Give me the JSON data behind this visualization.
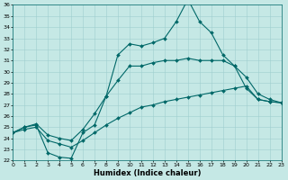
{
  "xlabel": "Humidex (Indice chaleur)",
  "x_min": 0,
  "x_max": 23,
  "y_min": 22,
  "y_max": 36,
  "background_color": "#c5e8e5",
  "grid_color": "#9ecece",
  "line_color": "#006868",
  "line1_x": [
    0,
    1,
    2,
    3,
    4,
    5,
    6,
    7,
    8,
    9,
    10,
    11,
    12,
    13,
    14,
    15,
    16,
    17,
    18,
    19,
    20,
    21,
    22,
    23
  ],
  "line1_y": [
    24.5,
    25.0,
    25.2,
    22.7,
    22.3,
    22.2,
    24.5,
    25.2,
    27.8,
    31.5,
    32.5,
    32.3,
    32.6,
    33.0,
    34.5,
    36.5,
    34.5,
    33.5,
    31.5,
    30.5,
    28.5,
    27.5,
    27.3,
    27.2
  ],
  "line2_x": [
    0,
    1,
    2,
    3,
    4,
    5,
    6,
    7,
    8,
    9,
    10,
    11,
    12,
    13,
    14,
    15,
    16,
    17,
    18,
    19,
    20,
    21,
    22,
    23
  ],
  "line2_y": [
    24.5,
    25.0,
    25.3,
    24.3,
    24.0,
    23.8,
    24.8,
    26.2,
    27.8,
    29.2,
    30.5,
    30.5,
    30.8,
    31.0,
    31.0,
    31.2,
    31.0,
    31.0,
    31.0,
    30.5,
    29.5,
    28.0,
    27.5,
    27.2
  ],
  "line3_x": [
    0,
    1,
    2,
    3,
    4,
    5,
    6,
    7,
    8,
    9,
    10,
    11,
    12,
    13,
    14,
    15,
    16,
    17,
    18,
    19,
    20,
    21,
    22,
    23
  ],
  "line3_y": [
    24.5,
    24.8,
    25.0,
    23.8,
    23.5,
    23.2,
    23.8,
    24.5,
    25.2,
    25.8,
    26.3,
    26.8,
    27.0,
    27.3,
    27.5,
    27.7,
    27.9,
    28.1,
    28.3,
    28.5,
    28.7,
    27.5,
    27.3,
    27.2
  ],
  "yticks": [
    22,
    23,
    24,
    25,
    26,
    27,
    28,
    29,
    30,
    31,
    32,
    33,
    34,
    35,
    36
  ],
  "xticks": [
    0,
    1,
    2,
    3,
    4,
    5,
    6,
    7,
    8,
    9,
    10,
    11,
    12,
    13,
    14,
    15,
    16,
    17,
    18,
    19,
    20,
    21,
    22,
    23
  ],
  "marker": "D",
  "marker_size": 2.0,
  "linewidth": 0.8,
  "tick_fontsize": 4.5,
  "xlabel_fontsize": 6.0
}
